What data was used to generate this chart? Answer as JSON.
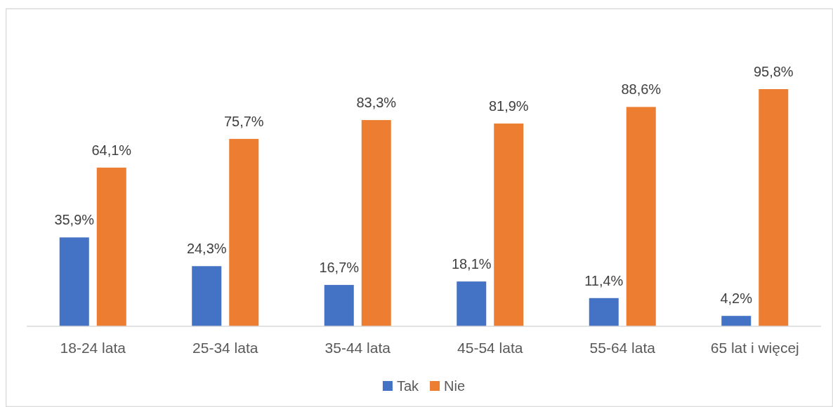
{
  "chart_data": {
    "type": "bar",
    "categories": [
      "18-24 lata",
      "25-34 lata",
      "35-44 lata",
      "45-54 lata",
      "55-64 lata",
      "65 lat i więcej"
    ],
    "series": [
      {
        "name": "Tak",
        "color": "#4472c4",
        "values": [
          35.9,
          24.3,
          16.7,
          18.1,
          11.4,
          4.2
        ],
        "value_labels": [
          "35,9%",
          "24,3%",
          "16,7%",
          "18,1%",
          "11,4%",
          "4,2%"
        ]
      },
      {
        "name": "Nie",
        "color": "#ed7d31",
        "values": [
          64.1,
          75.7,
          83.3,
          81.9,
          88.6,
          95.8
        ],
        "value_labels": [
          "64,1%",
          "75,7%",
          "83,3%",
          "81,9%",
          "88,6%",
          "95,8%"
        ]
      }
    ],
    "legend": "bottom"
  }
}
